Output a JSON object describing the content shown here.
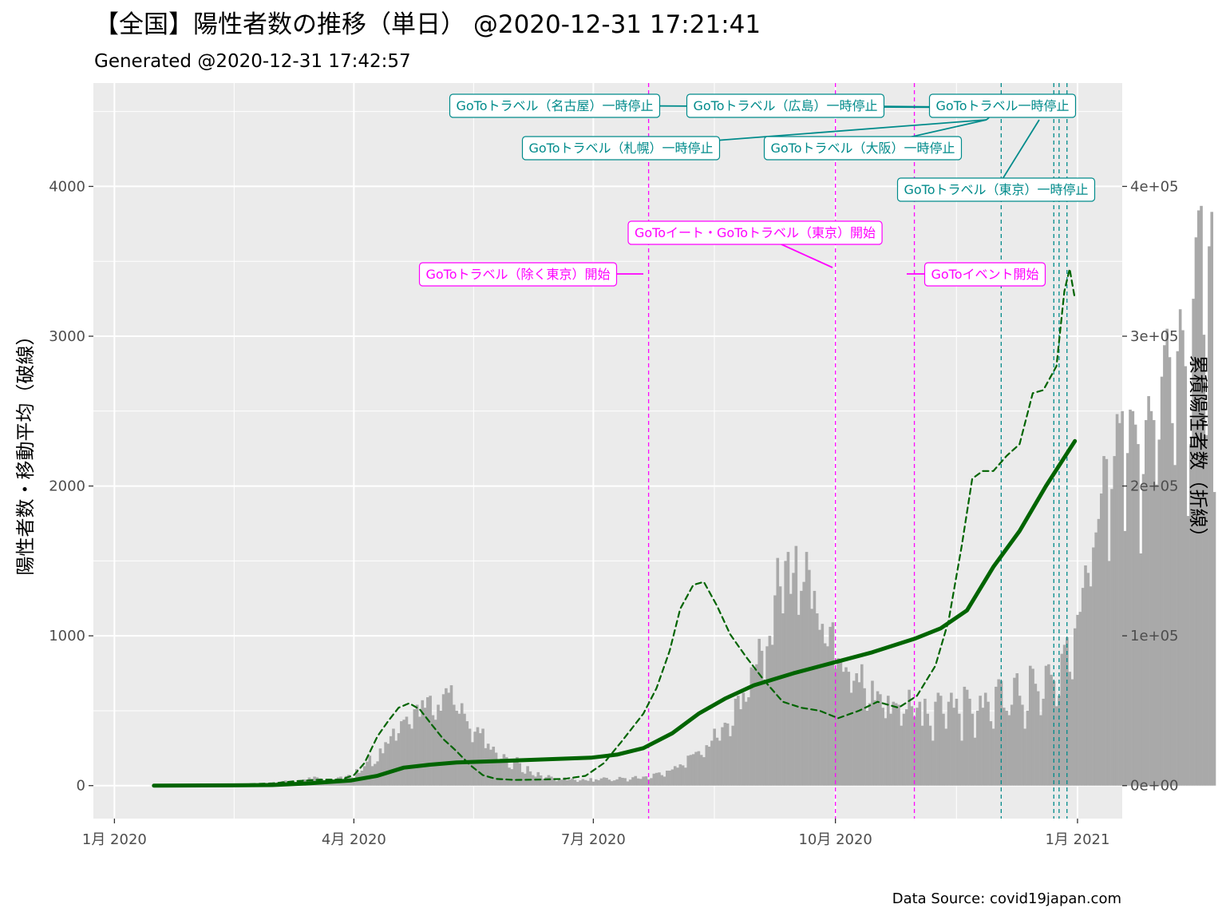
{
  "title": "【全国】陽性者数の推移（単日） @2020-12-31 17:21:41",
  "subtitle": "Generated @2020-12-31 17:42:57",
  "caption": "Data Source: covid19japan.com",
  "colors": {
    "panel": "#ebebeb",
    "grid": "#ffffff",
    "bar": "#a9a9a9",
    "cumulative_line": "#006400",
    "moving_avg_line": "#006400",
    "start_event": "#ff00ff",
    "stop_event": "#008b8b"
  },
  "chart_data": {
    "type": "bar+line",
    "x_axis": {
      "ticks": [
        "1月 2020",
        "4月 2020",
        "7月 2020",
        "10月 2020",
        "1月 2021"
      ],
      "tick_dates": [
        "2020-01-01",
        "2020-04-01",
        "2020-07-01",
        "2020-10-01",
        "2021-01-01"
      ],
      "range": [
        "2019-12-24",
        "2021-01-18"
      ]
    },
    "y_left": {
      "label": "陽性者数・移動平均（破線）",
      "ticks": [
        "0",
        "1000",
        "2000",
        "3000",
        "4000"
      ],
      "range": [
        -220,
        4690
      ]
    },
    "y_right": {
      "label": "累積陽性者数（折線）",
      "ticks": [
        "0e+00",
        "1e+05",
        "2e+05",
        "3e+05",
        "4e+05"
      ],
      "range": [
        -22000,
        469000
      ]
    },
    "grid": true,
    "series": [
      {
        "kind": "bar",
        "axis": "left",
        "start_date": "2020-01-16",
        "values": [
          1,
          0,
          0,
          0,
          0,
          0,
          1,
          2,
          1,
          1,
          2,
          1,
          0,
          1,
          2,
          2,
          1,
          1,
          0,
          1,
          1,
          2,
          1,
          0,
          0,
          2,
          1,
          3,
          1,
          2,
          3,
          1,
          1,
          2,
          4,
          5,
          8,
          6,
          10,
          9,
          14,
          12,
          14,
          18,
          15,
          20,
          16,
          22,
          24,
          30,
          34,
          20,
          18,
          26,
          22,
          30,
          35,
          42,
          40,
          54,
          45,
          60,
          55,
          48,
          38,
          30,
          28,
          34,
          40,
          45,
          55,
          60,
          43,
          64,
          72,
          55,
          44,
          110,
          85,
          100,
          130,
          160,
          200,
          130,
          145,
          162,
          248,
          216,
          290,
          280,
          330,
          380,
          300,
          350,
          430,
          440,
          460,
          410,
          380,
          510,
          540,
          460,
          570,
          520,
          590,
          600,
          470,
          440,
          540,
          500,
          610,
          650,
          620,
          670,
          540,
          500,
          480,
          550,
          480,
          430,
          380,
          290,
          360,
          390,
          350,
          380,
          250,
          280,
          240,
          260,
          220,
          170,
          180,
          210,
          190,
          120,
          110,
          160,
          190,
          150,
          90,
          80,
          130,
          95,
          70,
          60,
          90,
          68,
          45,
          56,
          70,
          60,
          50,
          30,
          45,
          40,
          55,
          36,
          40,
          48,
          38,
          25,
          35,
          44,
          37,
          32,
          50,
          27,
          42,
          36,
          48,
          55,
          52,
          40,
          30,
          35,
          42,
          58,
          52,
          50,
          28,
          40,
          56,
          64,
          48,
          45,
          60,
          62,
          42,
          50,
          80,
          85,
          88,
          70,
          60,
          100,
          100,
          108,
          130,
          120,
          142,
          135,
          120,
          200,
          205,
          210,
          225,
          230,
          205,
          190,
          270,
          260,
          300,
          380,
          320,
          300,
          390,
          420,
          415,
          330,
          400,
          580,
          600,
          510,
          620,
          560,
          590,
          790,
          780,
          810,
          980,
          900,
          680,
          930,
          1000,
          940,
          1270,
          1520,
          1330,
          1150,
          1500,
          1560,
          1280,
          1420,
          1600,
          1140,
          1300,
          1360,
          1560,
          1440,
          1180,
          1300,
          1150,
          1040,
          1080,
          950,
          930,
          1060,
          1090,
          780,
          850,
          830,
          760,
          790,
          760,
          620,
          700,
          750,
          690,
          810,
          650,
          500,
          550,
          700,
          570,
          630,
          610,
          520,
          450,
          600,
          480,
          560,
          550,
          540,
          400,
          480,
          510,
          640,
          530,
          460,
          520,
          560,
          400,
          580,
          480,
          400,
          300,
          560,
          620,
          600,
          480,
          380,
          560,
          620,
          520,
          580,
          480,
          300,
          660,
          640,
          580,
          480,
          320,
          500,
          600,
          520,
          620,
          560,
          430,
          380,
          660,
          710,
          700,
          520,
          500,
          470,
          540,
          720,
          750,
          600,
          540,
          380,
          500,
          800,
          780,
          680,
          630,
          470,
          580,
          800,
          810,
          740,
          700,
          530,
          600,
          880,
          940,
          990,
          760,
          710,
          1050,
          1140,
          1160,
          1320,
          1470,
          1420,
          1330,
          1590,
          1690,
          1780,
          1950,
          2200,
          2180,
          1500,
          1980,
          2200,
          2480,
          2420,
          2500,
          1700,
          2220,
          2510,
          2500,
          2410,
          2280,
          1550,
          2080,
          2440,
          2600,
          2500,
          2440,
          2010,
          2310,
          2730,
          2940,
          3050,
          2860,
          2420,
          2140,
          2900,
          3180,
          3040,
          2800,
          1800,
          2280,
          3250,
          3660,
          3840,
          3870,
          3010,
          2340,
          3600,
          3830,
          1960
        ]
      },
      {
        "kind": "line",
        "style": "dashed",
        "axis": "left",
        "name": "移動平均（破線）",
        "points": [
          [
            "2020-01-16",
            0
          ],
          [
            "2020-02-10",
            2
          ],
          [
            "2020-03-01",
            15
          ],
          [
            "2020-03-10",
            30
          ],
          [
            "2020-03-20",
            40
          ],
          [
            "2020-03-27",
            40
          ],
          [
            "2020-04-01",
            70
          ],
          [
            "2020-04-05",
            150
          ],
          [
            "2020-04-10",
            330
          ],
          [
            "2020-04-14",
            430
          ],
          [
            "2020-04-18",
            520
          ],
          [
            "2020-04-22",
            550
          ],
          [
            "2020-04-26",
            510
          ],
          [
            "2020-04-30",
            420
          ],
          [
            "2020-05-05",
            310
          ],
          [
            "2020-05-10",
            230
          ],
          [
            "2020-05-15",
            140
          ],
          [
            "2020-05-20",
            70
          ],
          [
            "2020-05-25",
            45
          ],
          [
            "2020-06-01",
            38
          ],
          [
            "2020-06-10",
            40
          ],
          [
            "2020-06-20",
            45
          ],
          [
            "2020-06-28",
            65
          ],
          [
            "2020-07-05",
            150
          ],
          [
            "2020-07-12",
            300
          ],
          [
            "2020-07-20",
            480
          ],
          [
            "2020-07-25",
            650
          ],
          [
            "2020-07-30",
            900
          ],
          [
            "2020-08-03",
            1180
          ],
          [
            "2020-08-08",
            1340
          ],
          [
            "2020-08-12",
            1360
          ],
          [
            "2020-08-17",
            1200
          ],
          [
            "2020-08-22",
            1010
          ],
          [
            "2020-08-28",
            860
          ],
          [
            "2020-09-04",
            700
          ],
          [
            "2020-09-11",
            560
          ],
          [
            "2020-09-18",
            520
          ],
          [
            "2020-09-25",
            500
          ],
          [
            "2020-10-02",
            450
          ],
          [
            "2020-10-10",
            500
          ],
          [
            "2020-10-17",
            560
          ],
          [
            "2020-10-25",
            520
          ],
          [
            "2020-11-01",
            600
          ],
          [
            "2020-11-08",
            800
          ],
          [
            "2020-11-13",
            1100
          ],
          [
            "2020-11-18",
            1600
          ],
          [
            "2020-11-22",
            2050
          ],
          [
            "2020-11-26",
            2100
          ],
          [
            "2020-11-30",
            2100
          ],
          [
            "2020-12-05",
            2200
          ],
          [
            "2020-12-10",
            2280
          ],
          [
            "2020-12-15",
            2620
          ],
          [
            "2020-12-19",
            2640
          ],
          [
            "2020-12-24",
            2800
          ],
          [
            "2020-12-27",
            3300
          ],
          [
            "2020-12-29",
            3450
          ],
          [
            "2020-12-31",
            3250
          ]
        ]
      },
      {
        "kind": "line",
        "style": "solid",
        "axis": "right",
        "name": "累積陽性者数（折線）",
        "points": [
          [
            "2020-01-16",
            0
          ],
          [
            "2020-02-15",
            200
          ],
          [
            "2020-03-01",
            400
          ],
          [
            "2020-03-15",
            1500
          ],
          [
            "2020-03-31",
            3500
          ],
          [
            "2020-04-10",
            6600
          ],
          [
            "2020-04-20",
            12000
          ],
          [
            "2020-04-30",
            14000
          ],
          [
            "2020-05-10",
            15500
          ],
          [
            "2020-05-31",
            16700
          ],
          [
            "2020-06-30",
            18600
          ],
          [
            "2020-07-10",
            20700
          ],
          [
            "2020-07-20",
            25000
          ],
          [
            "2020-07-31",
            35000
          ],
          [
            "2020-08-10",
            48000
          ],
          [
            "2020-08-20",
            58000
          ],
          [
            "2020-08-31",
            67000
          ],
          [
            "2020-09-15",
            75000
          ],
          [
            "2020-09-30",
            82000
          ],
          [
            "2020-10-15",
            89000
          ],
          [
            "2020-10-31",
            98000
          ],
          [
            "2020-11-10",
            105000
          ],
          [
            "2020-11-20",
            117000
          ],
          [
            "2020-11-30",
            146000
          ],
          [
            "2020-12-10",
            170000
          ],
          [
            "2020-12-20",
            200000
          ],
          [
            "2020-12-31",
            230000
          ]
        ]
      }
    ],
    "events": [
      {
        "date": "2020-07-22",
        "label": "GoToトラベル（除く東京）開始",
        "kind": "start"
      },
      {
        "date": "2020-10-01",
        "label": "GoToイート・GoToトラベル（東京）開始",
        "kind": "start"
      },
      {
        "date": "2020-10-31",
        "label": "GoToイベント開始",
        "kind": "start"
      },
      {
        "date": "2020-12-03",
        "label": "GoToトラベル（札幌）一時停止",
        "kind": "stop"
      },
      {
        "date": "2020-12-03",
        "label": "GoToトラベル（大阪）一時停止",
        "kind": "stop"
      },
      {
        "date": "2020-12-23",
        "label": "GoToトラベル（名古屋）一時停止",
        "kind": "stop"
      },
      {
        "date": "2020-12-25",
        "label": "GoToトラベル（広島）一時停止",
        "kind": "stop"
      },
      {
        "date": "2020-12-28",
        "label": "GoToトラベル一時停止",
        "kind": "stop"
      },
      {
        "date": "2020-12-28",
        "label": "GoToトラベル（東京）一時停止",
        "kind": "stop"
      }
    ]
  }
}
